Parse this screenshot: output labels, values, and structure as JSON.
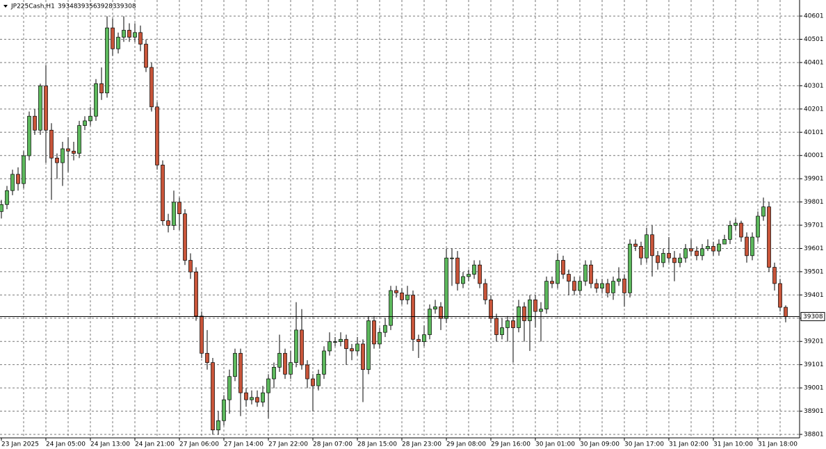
{
  "chart_data": {
    "type": "candlestick",
    "title": "JP225Cash,H1",
    "categories": [
      "23 Jan 2025",
      null,
      null,
      null,
      null,
      null,
      null,
      null,
      "24 Jan 05:00",
      null,
      null,
      null,
      null,
      null,
      null,
      null,
      "24 Jan 13:00",
      null,
      null,
      null,
      null,
      null,
      null,
      null,
      "24 Jan 21:00",
      null,
      null,
      null,
      null,
      null,
      null,
      null,
      "27 Jan 06:00",
      null,
      null,
      null,
      null,
      null,
      null,
      null,
      "27 Jan 14:00",
      null,
      null,
      null,
      null,
      null,
      null,
      null,
      "27 Jan 22:00",
      null,
      null,
      null,
      null,
      null,
      null,
      null,
      "28 Jan 07:00",
      null,
      null,
      null,
      null,
      null,
      null,
      null,
      "28 Jan 15:00",
      null,
      null,
      null,
      null,
      null,
      null,
      null,
      "28 Jan 23:00",
      null,
      null,
      null,
      null,
      null,
      null,
      null,
      "29 Jan 08:00",
      null,
      null,
      null,
      null,
      null,
      null,
      null,
      "29 Jan 16:00",
      null,
      null,
      null,
      null,
      null,
      null,
      null,
      "30 Jan 01:00",
      null,
      null,
      null,
      null,
      null,
      null,
      null,
      "30 Jan 09:00",
      null,
      null,
      null,
      null,
      null,
      null,
      null,
      "30 Jan 17:00",
      null,
      null,
      null,
      null,
      null,
      null,
      null,
      "31 Jan 02:00",
      null,
      null,
      null,
      null,
      null,
      null,
      null,
      "31 Jan 10:00",
      null,
      null,
      null,
      null,
      null,
      null,
      null,
      "31 Jan 18:00",
      null,
      null,
      null,
      null,
      null
    ],
    "open": [
      39760,
      39790,
      39850,
      39920,
      39880,
      40000,
      40170,
      40110,
      40300,
      40110,
      39990,
      39970,
      40030,
      40020,
      40010,
      40130,
      40150,
      40170,
      40310,
      40270,
      40550,
      40460,
      40510,
      40540,
      40510,
      40530,
      40480,
      40380,
      40210,
      39960,
      39720,
      39700,
      39800,
      39750,
      39550,
      39500,
      39310,
      39150,
      39110,
      38820,
      38860,
      38950,
      39050,
      39150,
      38980,
      38950,
      38960,
      38940,
      38980,
      39040,
      39090,
      39150,
      39060,
      39110,
      39250,
      39100,
      39040,
      39010,
      39060,
      39160,
      39200,
      39200,
      39210,
      39170,
      39160,
      39190,
      39080,
      39290,
      39190,
      39240,
      39270,
      39420,
      39410,
      39380,
      39400,
      39210,
      39200,
      39230,
      39340,
      39350,
      39300,
      39560,
      39560,
      39450,
      39480,
      39490,
      39530,
      39450,
      39380,
      39300,
      39230,
      39260,
      39290,
      39260,
      39350,
      39290,
      39380,
      39330,
      39340,
      39460,
      39450,
      39550,
      39490,
      39460,
      39420,
      39460,
      39530,
      39450,
      39430,
      39450,
      39410,
      39460,
      39470,
      39410,
      39620,
      39610,
      39560,
      39660,
      39570,
      39540,
      39580,
      39560,
      39540,
      39560,
      39600,
      39590,
      39570,
      39600,
      39610,
      39590,
      39620,
      39640,
      39700,
      39710,
      39650,
      39570,
      39650,
      39740,
      39780,
      39520,
      39450,
      39348
    ],
    "high": [
      39810,
      39870,
      39940,
      39950,
      40020,
      40190,
      40200,
      40310,
      40390,
      40140,
      40010,
      40060,
      40080,
      40060,
      40150,
      40170,
      40210,
      40330,
      40380,
      40600,
      40590,
      40530,
      40600,
      40570,
      40570,
      40560,
      40500,
      40400,
      40230,
      39980,
      39750,
      39850,
      39820,
      39770,
      39580,
      39520,
      39330,
      39250,
      39130,
      38900,
      38970,
      39080,
      39170,
      39170,
      39000,
      38990,
      38990,
      39010,
      39060,
      39110,
      39230,
      39170,
      39160,
      39370,
      39340,
      39120,
      39060,
      39080,
      39180,
      39240,
      39220,
      39240,
      39230,
      39190,
      39220,
      39210,
      39310,
      39310,
      39260,
      39300,
      39440,
      39440,
      39430,
      39440,
      39420,
      39230,
      39270,
      39360,
      39380,
      39370,
      39600,
      39600,
      39590,
      39500,
      39510,
      39550,
      39550,
      39470,
      39400,
      39320,
      39300,
      39310,
      39310,
      39380,
      39370,
      39400,
      39400,
      39370,
      39480,
      39480,
      39580,
      39570,
      39510,
      39480,
      39480,
      39550,
      39550,
      39470,
      39470,
      39470,
      39480,
      39520,
      39490,
      39640,
      39640,
      39630,
      39690,
      39700,
      39590,
      39600,
      39650,
      39590,
      39580,
      39620,
      39640,
      39610,
      39620,
      39640,
      39630,
      39640,
      39660,
      39720,
      39730,
      39720,
      39670,
      39670,
      39760,
      39820,
      39800,
      39540,
      39470,
      39356
    ],
    "low": [
      39730,
      39770,
      39830,
      39850,
      39860,
      39980,
      40090,
      40090,
      39970,
      39810,
      39900,
      39870,
      39930,
      39980,
      39990,
      40110,
      40130,
      40150,
      40240,
      40250,
      40430,
      40440,
      40490,
      40490,
      40490,
      40450,
      40360,
      40190,
      39940,
      39700,
      39670,
      39680,
      39680,
      39530,
      39470,
      39290,
      39130,
      39080,
      38800,
      38800,
      38840,
      38890,
      39030,
      38880,
      38920,
      38930,
      38920,
      38920,
      38870,
      39000,
      39070,
      39040,
      39040,
      39090,
      39080,
      39000,
      38900,
      38990,
      39040,
      39140,
      39180,
      39180,
      39100,
      39120,
      39140,
      38940,
      39060,
      39170,
      39170,
      39220,
      39250,
      39390,
      39360,
      39360,
      39160,
      39130,
      39180,
      39210,
      39320,
      39250,
      39280,
      39440,
      39420,
      39430,
      39460,
      39470,
      39430,
      39360,
      39280,
      39200,
      39210,
      39200,
      39110,
      39240,
      39200,
      39160,
      39260,
      39200,
      39320,
      39430,
      39430,
      39470,
      39400,
      39400,
      39400,
      39440,
      39430,
      39410,
      39410,
      39390,
      39380,
      39440,
      39350,
      39390,
      39590,
      39530,
      39540,
      39480,
      39510,
      39520,
      39540,
      39460,
      39520,
      39540,
      39570,
      39550,
      39550,
      39590,
      39570,
      39570,
      39620,
      39620,
      39680,
      39630,
      39540,
      39550,
      39630,
      39720,
      39500,
      39420,
      39330,
      39283
    ],
    "close": [
      39790,
      39850,
      39920,
      39880,
      40000,
      40170,
      40110,
      40300,
      40110,
      39990,
      39970,
      40030,
      40020,
      40010,
      40130,
      40150,
      40170,
      40310,
      40270,
      40550,
      40460,
      40510,
      40540,
      40510,
      40530,
      40480,
      40380,
      40210,
      39960,
      39720,
      39700,
      39800,
      39750,
      39550,
      39500,
      39310,
      39150,
      39110,
      38820,
      38860,
      38950,
      39050,
      39150,
      38980,
      38950,
      38960,
      38940,
      38980,
      39040,
      39090,
      39150,
      39060,
      39110,
      39250,
      39100,
      39040,
      39010,
      39060,
      39160,
      39200,
      39200,
      39210,
      39170,
      39160,
      39190,
      39080,
      39290,
      39190,
      39240,
      39270,
      39420,
      39410,
      39380,
      39400,
      39210,
      39200,
      39230,
      39340,
      39350,
      39300,
      39560,
      39560,
      39450,
      39480,
      39490,
      39530,
      39450,
      39380,
      39300,
      39230,
      39260,
      39290,
      39260,
      39350,
      39290,
      39380,
      39330,
      39340,
      39460,
      39450,
      39550,
      39490,
      39460,
      39420,
      39460,
      39530,
      39450,
      39430,
      39450,
      39410,
      39460,
      39470,
      39410,
      39620,
      39610,
      39560,
      39660,
      39570,
      39540,
      39580,
      39560,
      39540,
      39560,
      39600,
      39590,
      39570,
      39600,
      39610,
      39590,
      39620,
      39640,
      39700,
      39710,
      39650,
      39570,
      39650,
      39740,
      39780,
      39520,
      39450,
      39348,
      39308
    ],
    "ylim": [
      38786,
      40670
    ],
    "yticks": [
      38801,
      38901,
      39001,
      39101,
      39201,
      39301,
      39401,
      39501,
      39601,
      39701,
      39801,
      39901,
      40001,
      40101,
      40201,
      40301,
      40401,
      40501,
      40601
    ],
    "grid": true,
    "up_color": "#5cb85c",
    "down_color": "#c8553a"
  }
}
